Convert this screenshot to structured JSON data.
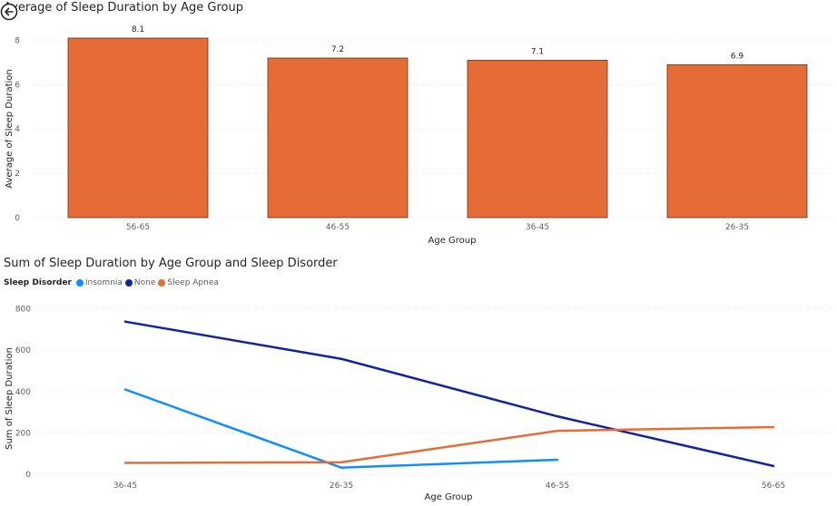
{
  "chart_data": [
    {
      "type": "bar",
      "title": "Average of Sleep Duration by Age Group",
      "xlabel": "Age Group",
      "ylabel": "Average of Sleep Duration",
      "categories": [
        "56-65",
        "46-55",
        "36-45",
        "26-35"
      ],
      "values": [
        8.1,
        7.2,
        7.1,
        6.9
      ],
      "data_labels": [
        "8.1",
        "7.2",
        "7.1",
        "6.9"
      ],
      "yticks": [
        "0",
        "2",
        "4",
        "6",
        "8"
      ],
      "ylim": [
        0,
        9
      ],
      "grid": true,
      "color": "#E66C37"
    },
    {
      "type": "line",
      "title": "Sum of Sleep Duration by Age Group and Sleep Disorder",
      "xlabel": "Age Group",
      "ylabel": "Sum of Sleep Duration",
      "legend_title": "Sleep Disorder",
      "legend_position": "top-left",
      "categories": [
        "36-45",
        "26-35",
        "46-55",
        "56-65"
      ],
      "yticks": [
        "0",
        "200",
        "400",
        "600",
        "800"
      ],
      "ylim": [
        0,
        820
      ],
      "grid": true,
      "series": [
        {
          "name": "Insomnia",
          "color": "#118DFF",
          "values": [
            410,
            32,
            70,
            null
          ]
        },
        {
          "name": "None",
          "color": "#12239E",
          "values": [
            738,
            558,
            280,
            40
          ]
        },
        {
          "name": "Sleep Apnea",
          "color": "#E66C37",
          "values": [
            55,
            58,
            210,
            228
          ]
        }
      ]
    }
  ]
}
